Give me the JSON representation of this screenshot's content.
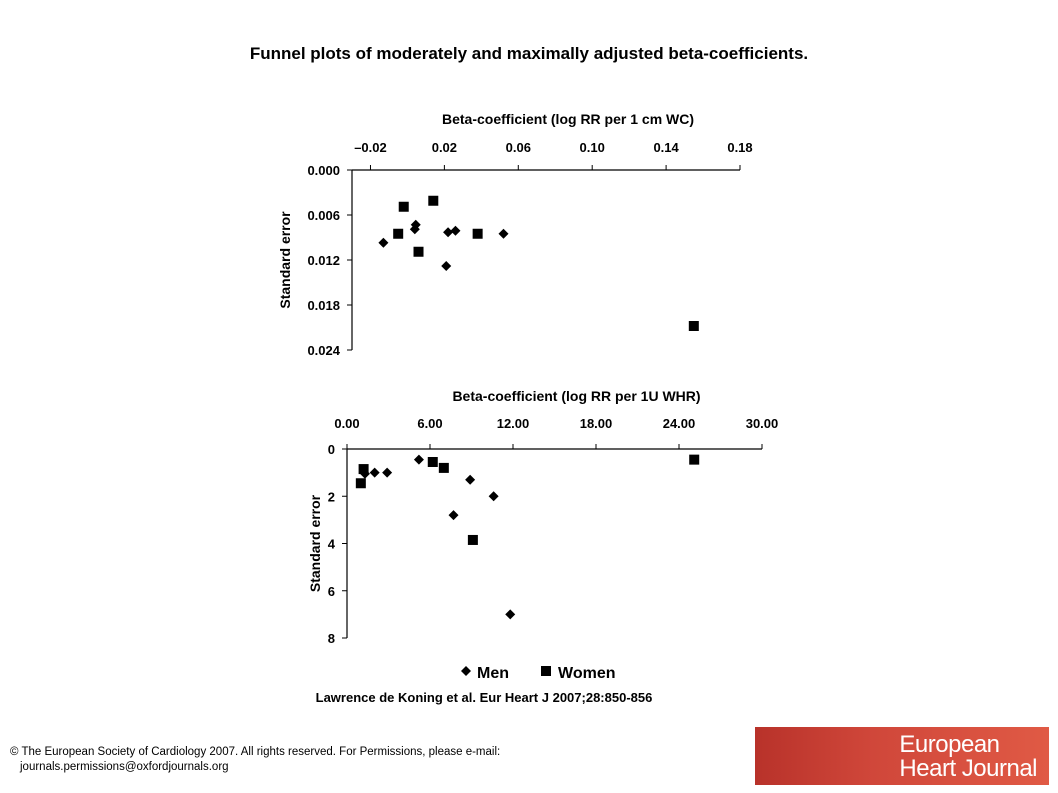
{
  "title": "Funnel plots of moderately and maximally adjusted beta-coefficients.",
  "citation": "Lawrence de Koning et al. Eur Heart J 2007;28:850-856",
  "copyright": {
    "line1": "© The European Society of Cardiology 2007. All rights reserved. For Permissions, please e-mail:",
    "line2": "journals.permissions@oxfordjournals.org"
  },
  "logo": {
    "line1": "European",
    "line2": "Heart Journal",
    "color": "#c93a2f"
  },
  "legend": {
    "men": "Men",
    "women": "Women"
  },
  "chart_data": [
    {
      "type": "scatter",
      "xlabel": "Beta-coefficient (log RR per 1 cm WC)",
      "ylabel": "Standard error",
      "xlim": [
        -0.03,
        0.18
      ],
      "ylim": [
        0.0,
        0.024
      ],
      "y_inverted": true,
      "x_axis_position": "top",
      "xticks": [
        -0.02,
        0.02,
        0.06,
        0.1,
        0.14,
        0.18
      ],
      "xtick_labels": [
        "–0.02",
        "0.02",
        "0.06",
        "0.10",
        "0.14",
        "0.18"
      ],
      "yticks": [
        0.0,
        0.006,
        0.012,
        0.018,
        0.024
      ],
      "ytick_labels": [
        "0.000",
        "0.006",
        "0.012",
        "0.018",
        "0.024"
      ],
      "series": [
        {
          "name": "Men",
          "marker": "diamond",
          "points": [
            {
              "x": -0.013,
              "y": 0.0097
            },
            {
              "x": 0.0045,
              "y": 0.0073
            },
            {
              "x": 0.004,
              "y": 0.0079
            },
            {
              "x": 0.022,
              "y": 0.0083
            },
            {
              "x": 0.026,
              "y": 0.0081
            },
            {
              "x": 0.052,
              "y": 0.0085
            },
            {
              "x": 0.021,
              "y": 0.0128
            }
          ]
        },
        {
          "name": "Women",
          "marker": "square",
          "points": [
            {
              "x": -0.002,
              "y": 0.0049
            },
            {
              "x": 0.014,
              "y": 0.0041
            },
            {
              "x": -0.005,
              "y": 0.0085
            },
            {
              "x": 0.038,
              "y": 0.0085
            },
            {
              "x": 0.006,
              "y": 0.0109
            },
            {
              "x": 0.155,
              "y": 0.0208
            }
          ]
        }
      ]
    },
    {
      "type": "scatter",
      "xlabel": "Beta-coefficient (log RR per 1U WHR)",
      "ylabel": "Standard error",
      "xlim": [
        0,
        30
      ],
      "ylim": [
        0,
        8
      ],
      "y_inverted": true,
      "x_axis_position": "top",
      "xticks": [
        0,
        6,
        12,
        18,
        24,
        30
      ],
      "xtick_labels": [
        "0.00",
        "6.00",
        "12.00",
        "18.00",
        "24.00",
        "30.00"
      ],
      "yticks": [
        0,
        2,
        4,
        6,
        8
      ],
      "ytick_labels": [
        "0",
        "2",
        "4",
        "6",
        "8"
      ],
      "series": [
        {
          "name": "Men",
          "marker": "diamond",
          "points": [
            {
              "x": 1.3,
              "y": 1.05
            },
            {
              "x": 2.0,
              "y": 1.0
            },
            {
              "x": 2.9,
              "y": 1.0
            },
            {
              "x": 5.2,
              "y": 0.45
            },
            {
              "x": 8.9,
              "y": 1.3
            },
            {
              "x": 10.6,
              "y": 2.0
            },
            {
              "x": 7.7,
              "y": 2.8
            },
            {
              "x": 11.8,
              "y": 7.0
            }
          ]
        },
        {
          "name": "Women",
          "marker": "square",
          "points": [
            {
              "x": 1.2,
              "y": 0.85
            },
            {
              "x": 1.0,
              "y": 1.45
            },
            {
              "x": 6.2,
              "y": 0.55
            },
            {
              "x": 7.0,
              "y": 0.8
            },
            {
              "x": 9.1,
              "y": 3.85
            },
            {
              "x": 25.1,
              "y": 0.45
            }
          ]
        }
      ]
    }
  ]
}
